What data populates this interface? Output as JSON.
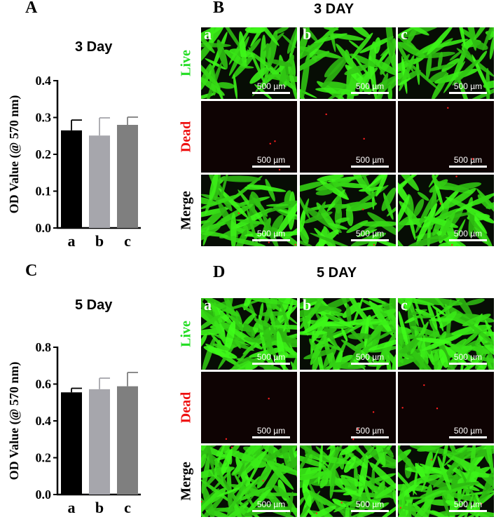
{
  "panels": {
    "A": {
      "letter": "A"
    },
    "B": {
      "letter": "B",
      "title": "3 DAY"
    },
    "C": {
      "letter": "C"
    },
    "D": {
      "letter": "D",
      "title": "5 DAY"
    }
  },
  "chart_data": [
    {
      "type": "bar",
      "title": "3 Day",
      "ylabel": "OD Value (@ 570 nm)",
      "xlabel": "",
      "categories": [
        "a",
        "b",
        "c"
      ],
      "values": [
        0.265,
        0.251,
        0.28
      ],
      "errors": [
        0.028,
        0.048,
        0.021
      ],
      "ylim": [
        0,
        0.4
      ],
      "yticks": [
        "0.0",
        "0.1",
        "0.2",
        "0.3",
        "0.4"
      ],
      "colors": [
        "#000000",
        "#a6a6ac",
        "#7f7f7f"
      ],
      "grid": false
    },
    {
      "type": "bar",
      "title": "5 Day",
      "ylabel": "OD Value (@ 570 nm)",
      "xlabel": "",
      "categories": [
        "a",
        "b",
        "c"
      ],
      "values": [
        0.555,
        0.572,
        0.588
      ],
      "errors": [
        0.022,
        0.06,
        0.075
      ],
      "ylim": [
        0,
        0.8
      ],
      "yticks": [
        "0.0",
        "0.2",
        "0.4",
        "0.6",
        "0.8"
      ],
      "colors": [
        "#000000",
        "#a6a6ac",
        "#7f7f7f"
      ],
      "grid": false
    }
  ],
  "image_grids": {
    "column_labels": [
      "a",
      "b",
      "c"
    ],
    "row_labels": [
      "Live",
      "Dead",
      "Merge"
    ],
    "row_label_colors": [
      "#22dd22",
      "#ee1111",
      "#000000"
    ],
    "scale_bar_label": "500 µm"
  }
}
